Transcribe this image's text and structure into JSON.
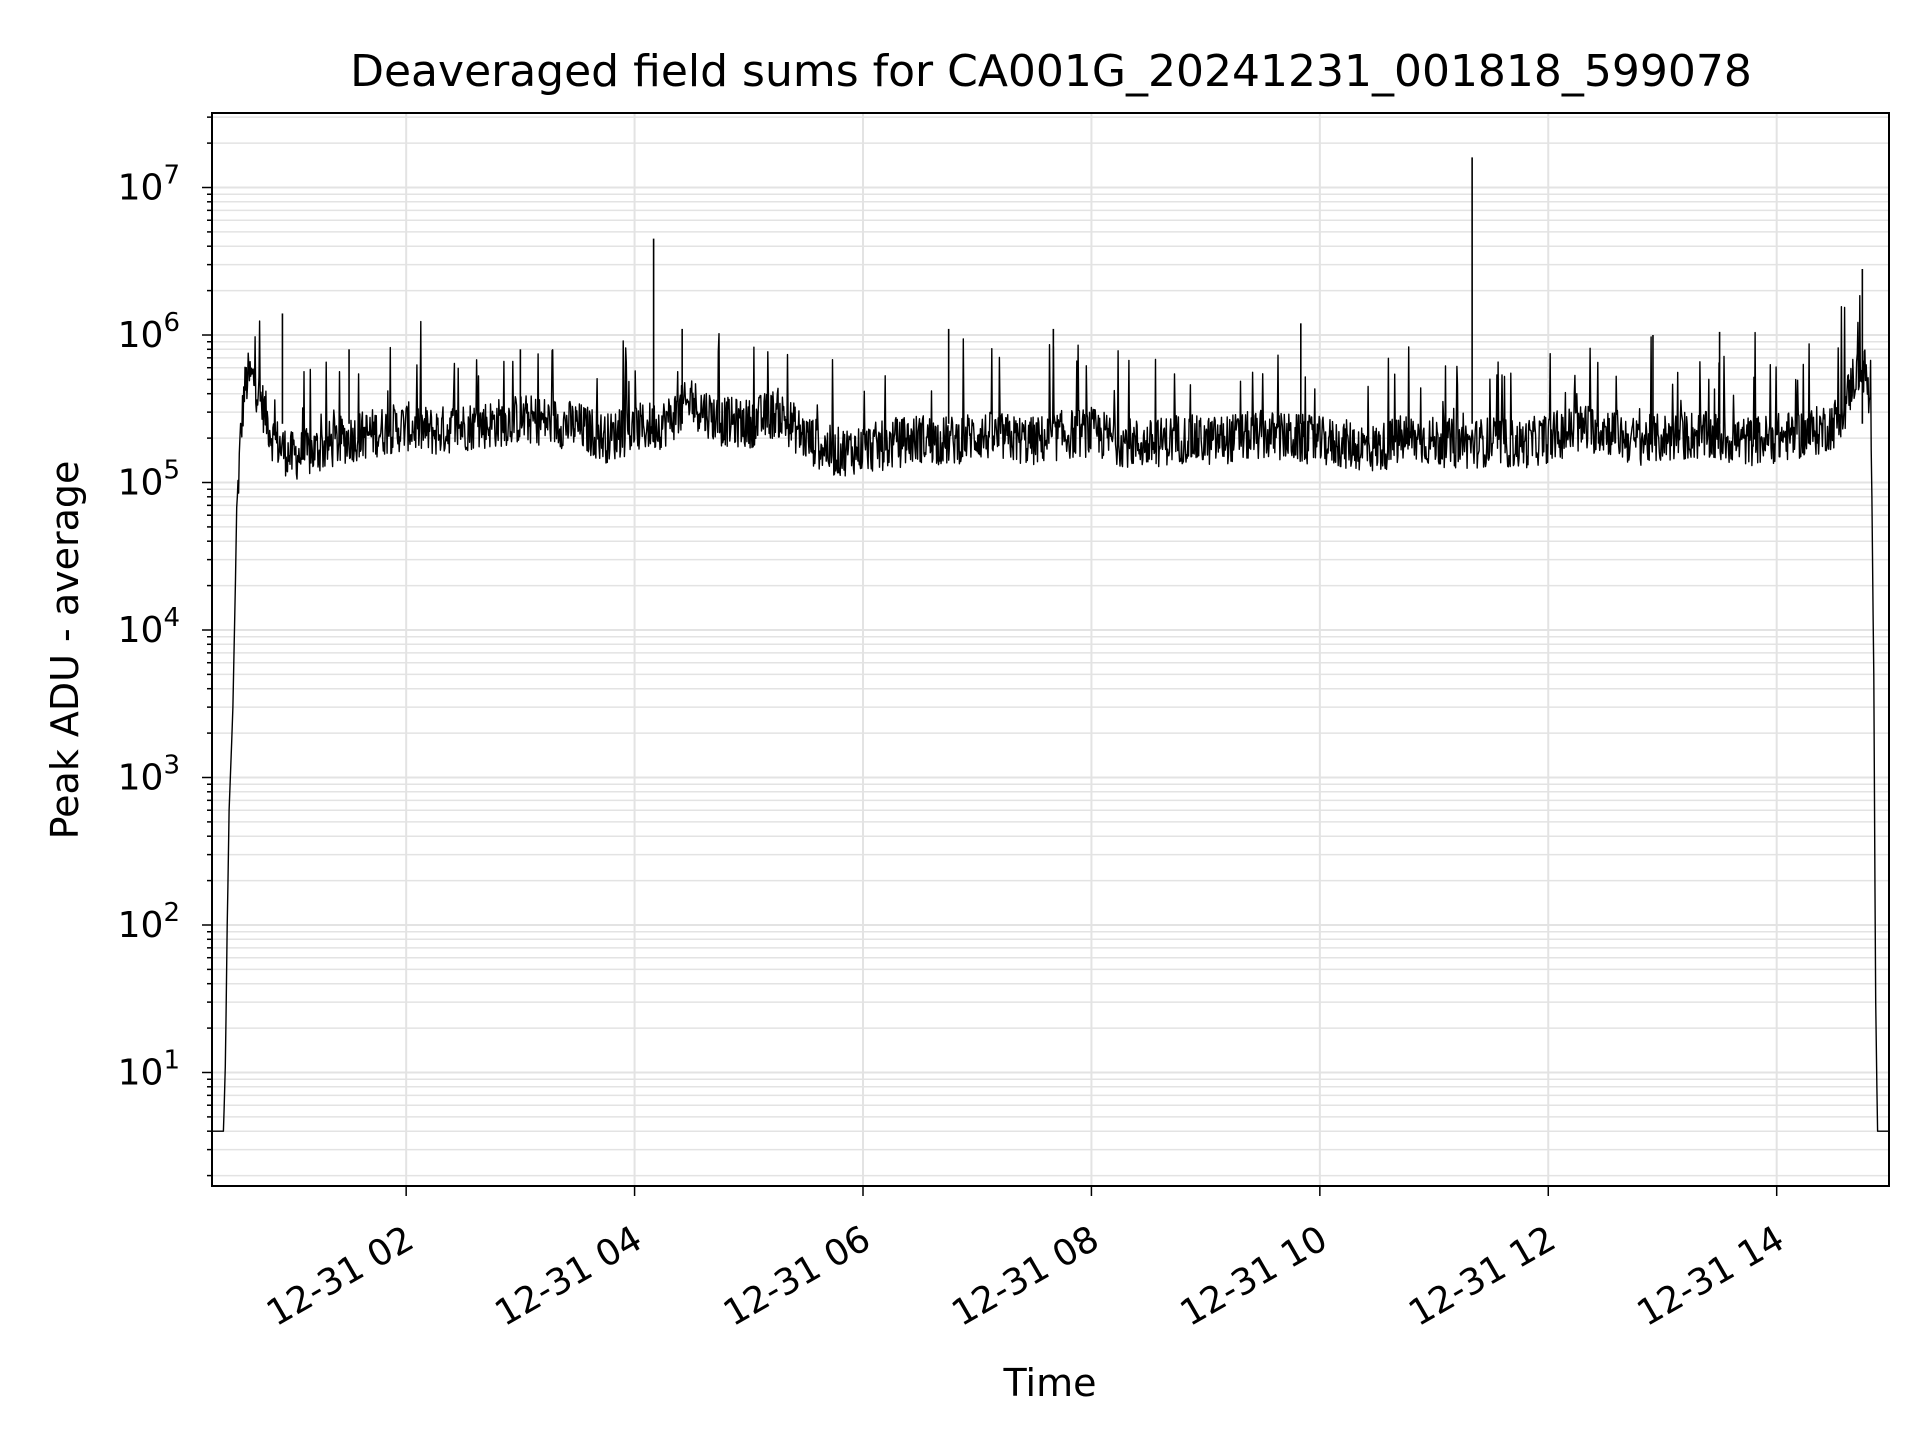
{
  "chart_data": {
    "type": "line",
    "title": "Deaveraged field sums for CA001G_20241231_001818_599078",
    "xlabel": "Time",
    "ylabel": "Peak ADU - average",
    "yscale": "log",
    "grid": true,
    "legend": "none",
    "line_color": "#000000",
    "grid_color": "#e3e3e3",
    "xlim": [
      "2024-12-31 00:18",
      "2024-12-31 14:59"
    ],
    "ylim": [
      1.7,
      32000000
    ],
    "x_ticks": [
      {
        "value": "2024-12-31 02:00",
        "label": "12-31 02"
      },
      {
        "value": "2024-12-31 04:00",
        "label": "12-31 04"
      },
      {
        "value": "2024-12-31 06:00",
        "label": "12-31 06"
      },
      {
        "value": "2024-12-31 08:00",
        "label": "12-31 08"
      },
      {
        "value": "2024-12-31 10:00",
        "label": "12-31 10"
      },
      {
        "value": "2024-12-31 12:00",
        "label": "12-31 12"
      },
      {
        "value": "2024-12-31 14:00",
        "label": "12-31 14"
      }
    ],
    "y_ticks": [
      {
        "value": 10,
        "base": "10",
        "exp": "1"
      },
      {
        "value": 100,
        "base": "10",
        "exp": "2"
      },
      {
        "value": 1000,
        "base": "10",
        "exp": "3"
      },
      {
        "value": 10000,
        "base": "10",
        "exp": "4"
      },
      {
        "value": 100000,
        "base": "10",
        "exp": "5"
      },
      {
        "value": 1000000,
        "base": "10",
        "exp": "6"
      },
      {
        "value": 10000000,
        "base": "10",
        "exp": "7"
      }
    ],
    "series": [
      {
        "x": [
          "2024-12-31 00:18",
          "2024-12-31 00:24",
          "2024-12-31 00:25",
          "2024-12-31 00:26",
          "2024-12-31 00:27",
          "2024-12-31 00:29",
          "2024-12-31 00:31",
          "2024-12-31 00:33",
          "2024-12-31 00:35",
          "2024-12-31 00:37",
          "2024-12-31 00:40",
          "2024-12-31 00:45",
          "2024-12-31 00:50",
          "2024-12-31 00:55",
          "2024-12-31 01:00",
          "2024-12-31 01:10",
          "2024-12-31 01:20",
          "2024-12-31 01:30",
          "2024-12-31 01:45",
          "2024-12-31 02:00",
          "2024-12-31 02:15",
          "2024-12-31 02:30",
          "2024-12-31 02:45",
          "2024-12-31 03:00",
          "2024-12-31 03:15",
          "2024-12-31 03:30",
          "2024-12-31 03:45",
          "2024-12-31 04:00",
          "2024-12-31 04:15",
          "2024-12-31 04:30",
          "2024-12-31 04:45",
          "2024-12-31 05:00",
          "2024-12-31 05:15",
          "2024-12-31 05:30",
          "2024-12-31 05:45",
          "2024-12-31 06:00",
          "2024-12-31 06:15",
          "2024-12-31 06:30",
          "2024-12-31 06:45",
          "2024-12-31 07:00",
          "2024-12-31 07:15",
          "2024-12-31 07:30",
          "2024-12-31 07:45",
          "2024-12-31 08:00",
          "2024-12-31 08:15",
          "2024-12-31 08:30",
          "2024-12-31 08:45",
          "2024-12-31 09:00",
          "2024-12-31 09:15",
          "2024-12-31 09:30",
          "2024-12-31 09:45",
          "2024-12-31 10:00",
          "2024-12-31 10:15",
          "2024-12-31 10:30",
          "2024-12-31 10:45",
          "2024-12-31 11:00",
          "2024-12-31 11:15",
          "2024-12-31 11:30",
          "2024-12-31 11:45",
          "2024-12-31 12:00",
          "2024-12-31 12:15",
          "2024-12-31 12:30",
          "2024-12-31 12:45",
          "2024-12-31 13:00",
          "2024-12-31 13:15",
          "2024-12-31 13:30",
          "2024-12-31 13:45",
          "2024-12-31 14:00",
          "2024-12-31 14:10",
          "2024-12-31 14:20",
          "2024-12-31 14:30",
          "2024-12-31 14:36",
          "2024-12-31 14:40",
          "2024-12-31 14:44",
          "2024-12-31 14:47",
          "2024-12-31 14:49",
          "2024-12-31 14:50",
          "2024-12-31 14:51",
          "2024-12-31 14:52",
          "2024-12-31 14:53",
          "2024-12-31 14:54",
          "2024-12-31 14:59"
        ],
        "values": [
          4,
          4,
          11,
          100,
          600,
          3000,
          60000,
          200000,
          420000,
          520000,
          500000,
          320000,
          200000,
          170000,
          150000,
          160000,
          180000,
          200000,
          220000,
          240000,
          220000,
          240000,
          250000,
          270000,
          260000,
          240000,
          200000,
          230000,
          250000,
          350000,
          260000,
          250000,
          300000,
          200000,
          160000,
          170000,
          180000,
          200000,
          190000,
          210000,
          200000,
          190000,
          210000,
          220000,
          190000,
          180000,
          200000,
          190000,
          200000,
          210000,
          200000,
          190000,
          180000,
          170000,
          200000,
          190000,
          180000,
          190000,
          180000,
          200000,
          230000,
          230000,
          190000,
          200000,
          210000,
          200000,
          190000,
          200000,
          210000,
          220000,
          250000,
          330000,
          500000,
          600000,
          550000,
          300000,
          80000,
          5000,
          30,
          4,
          4,
          4
        ]
      }
    ],
    "spikes": [
      {
        "x": "2024-12-31 00:55",
        "y": 1400000
      },
      {
        "x": "2024-12-31 04:10",
        "y": 4500000
      },
      {
        "x": "2024-12-31 04:25",
        "y": 1100000
      },
      {
        "x": "2024-12-31 11:20",
        "y": 16000000
      },
      {
        "x": "2024-12-31 14:45",
        "y": 2800000
      },
      {
        "x": "2024-12-31 01:30",
        "y": 800000
      },
      {
        "x": "2024-12-31 03:00",
        "y": 800000
      },
      {
        "x": "2024-12-31 06:45",
        "y": 1100000
      },
      {
        "x": "2024-12-31 07:40",
        "y": 1100000
      },
      {
        "x": "2024-12-31 09:50",
        "y": 1200000
      },
      {
        "x": "2024-12-31 12:55",
        "y": 1000000
      },
      {
        "x": "2024-12-31 13:30",
        "y": 1050000
      }
    ]
  }
}
